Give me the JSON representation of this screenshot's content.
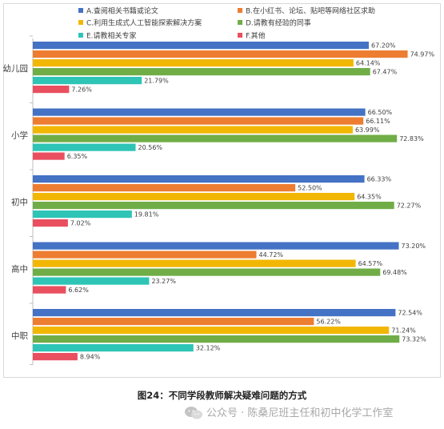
{
  "chart_data": {
    "type": "bar",
    "orientation": "horizontal",
    "categories": [
      "幼儿园",
      "小学",
      "初中",
      "高中",
      "中职"
    ],
    "series": [
      {
        "name": "A.查阅相关书籍或论文",
        "color": "#4472c4",
        "values": [
          67.2,
          66.5,
          66.33,
          73.2,
          72.54
        ],
        "labels": [
          "67.20%",
          "66.50%",
          "66.33%",
          "73.20%",
          "72.54%"
        ]
      },
      {
        "name": "B.在小红书、论坛、贴吧等网络社区求助",
        "color": "#ed7d31",
        "values": [
          74.97,
          66.11,
          52.5,
          44.72,
          56.22
        ],
        "labels": [
          "74.97%",
          "66.11%",
          "52.50%",
          "44.72%",
          "56.22%"
        ]
      },
      {
        "name": "C.利用生成式人工智能探索解决方案",
        "color": "#f2b705",
        "values": [
          64.14,
          63.99,
          64.35,
          64.57,
          71.24
        ],
        "labels": [
          "64.14%",
          "63.99%",
          "64.35%",
          "64.57%",
          "71.24%"
        ]
      },
      {
        "name": "D.请教有经验的同事",
        "color": "#70ad47",
        "values": [
          67.47,
          72.83,
          72.27,
          69.48,
          73.32
        ],
        "labels": [
          "67.47%",
          "72.83%",
          "72.27%",
          "69.48%",
          "73.32%"
        ]
      },
      {
        "name": "E.请教相关专家",
        "color": "#2ec4b6",
        "values": [
          21.79,
          20.56,
          19.81,
          23.27,
          32.12
        ],
        "labels": [
          "21.79%",
          "20.56%",
          "19.81%",
          "23.27%",
          "32.12%"
        ]
      },
      {
        "name": "F.其他",
        "color": "#e94f5f",
        "values": [
          7.26,
          6.35,
          7.02,
          6.62,
          8.94
        ],
        "labels": [
          "7.26%",
          "6.35%",
          "7.02%",
          "6.62%",
          "8.94%"
        ]
      }
    ],
    "xlim": [
      0,
      80
    ],
    "legend_position": "top",
    "grid": false
  },
  "caption": "图24：不同学段教师解决疑难问题的方式",
  "watermark": {
    "icon": "wechat-icon",
    "text": "公众号 · 陈桑尼班主任和初中化学工作室"
  }
}
